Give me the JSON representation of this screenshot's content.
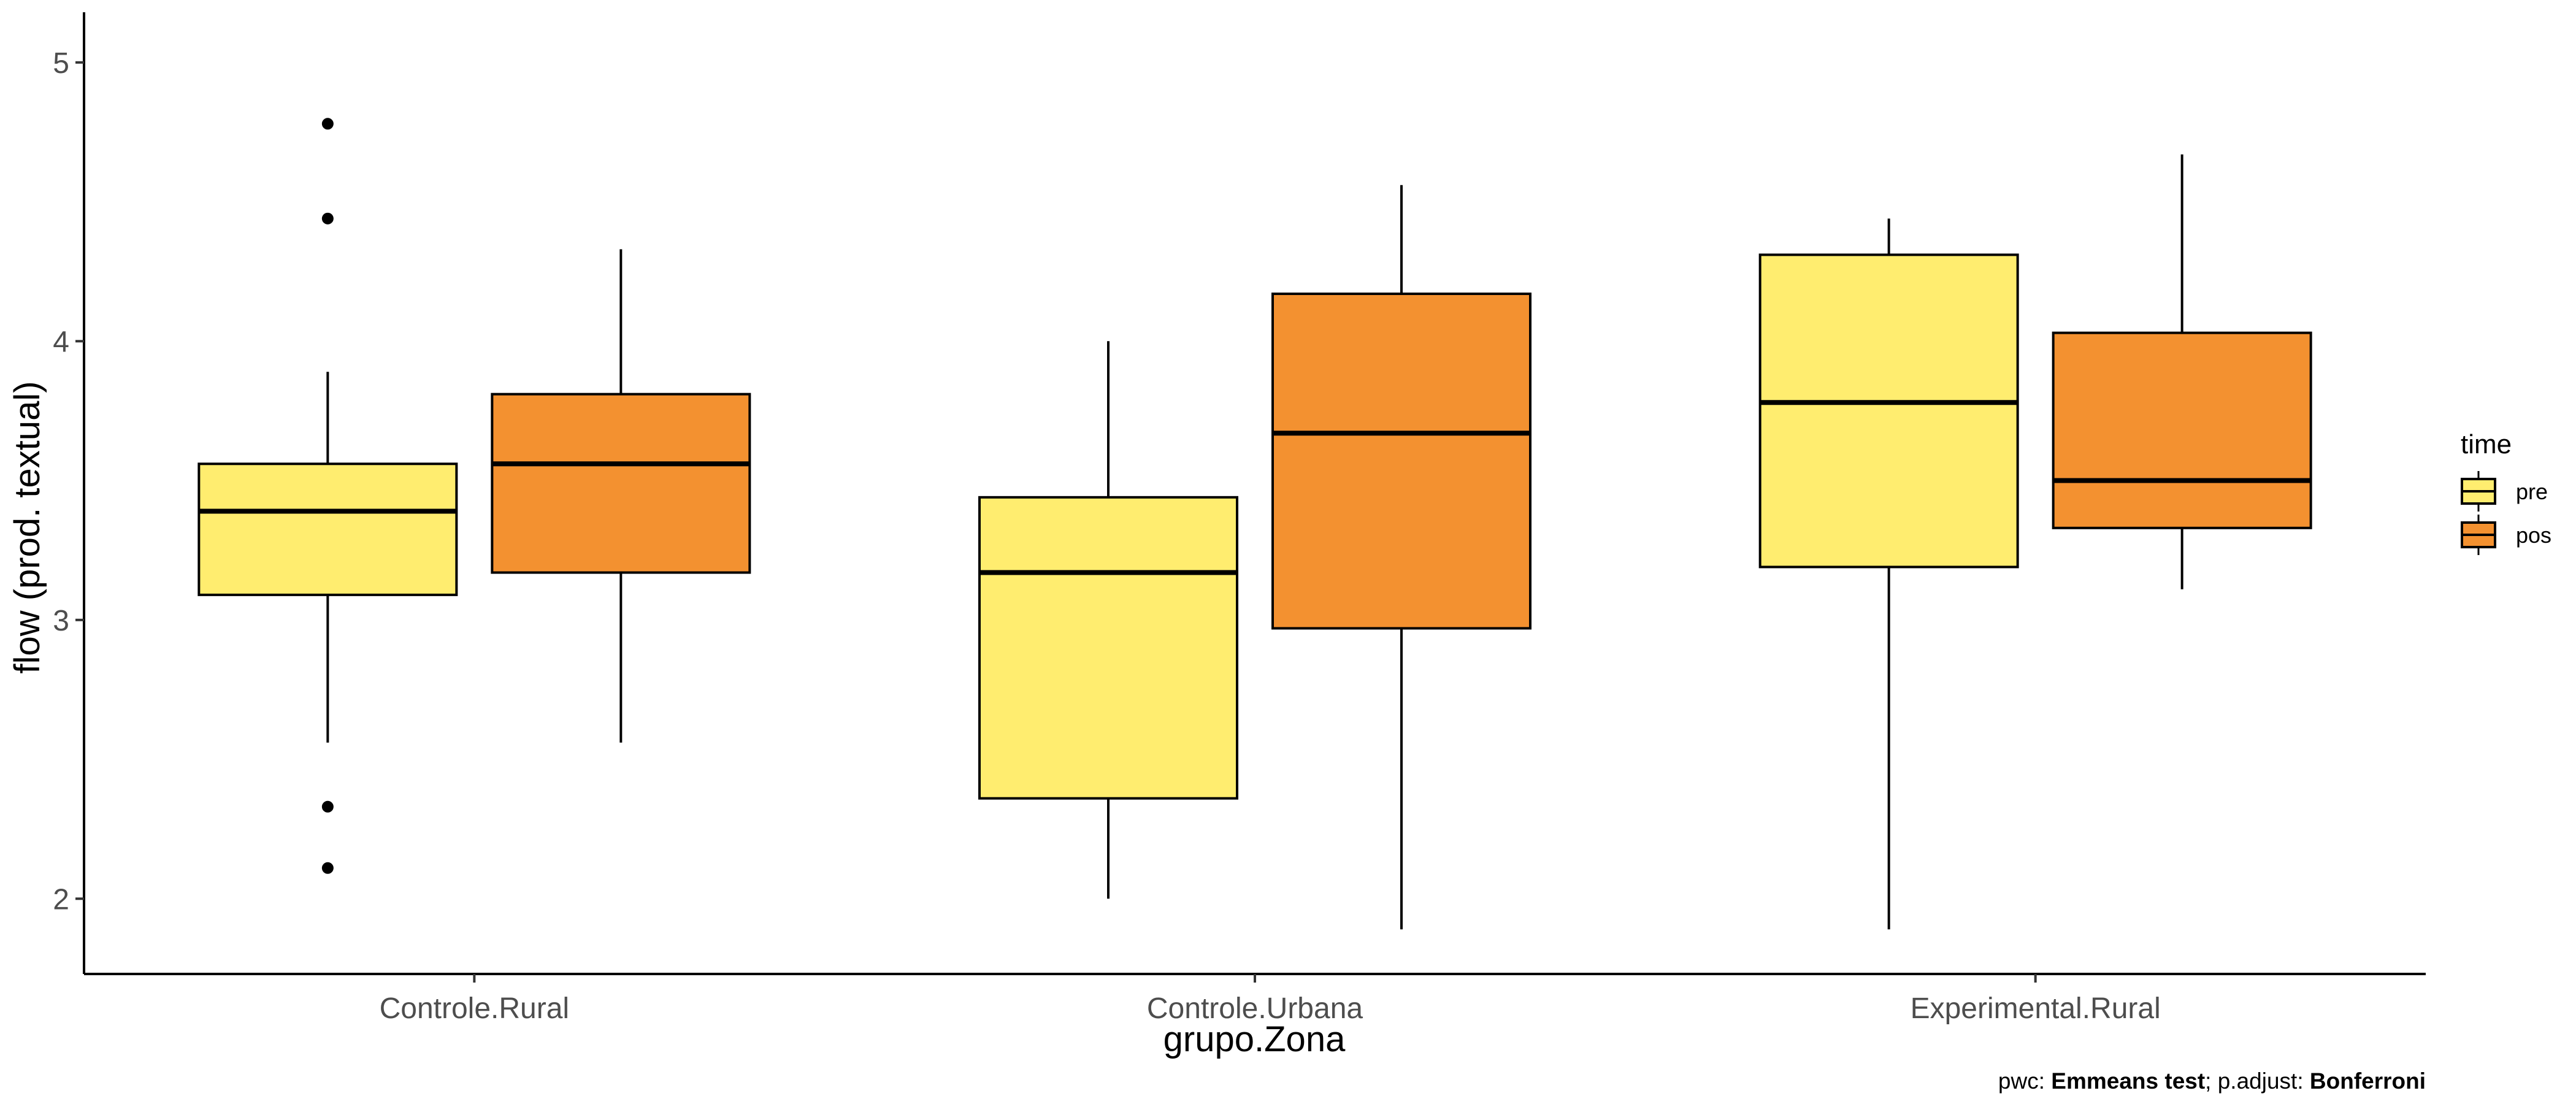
{
  "chart_data": {
    "type": "boxplot",
    "xlabel": "grupo.Zona",
    "ylabel": "flow (prod. textual)",
    "categories": [
      "Controle.Rural",
      "Controle.Urbana",
      "Experimental.Rural"
    ],
    "ylim": [
      1.73,
      5.18
    ],
    "yticks": [
      2,
      3,
      4,
      5
    ],
    "grid": false,
    "legend": {
      "title": "time",
      "placement": "right",
      "entries": [
        {
          "key": "pre",
          "label": "pre",
          "color": "#FFED6F"
        },
        {
          "key": "pos",
          "label": "pos",
          "color": "#F39130"
        }
      ]
    },
    "series": [
      {
        "key": "pre",
        "color": "#FFED6F",
        "boxes": [
          {
            "category": "Controle.Rural",
            "lower_whisker": 2.56,
            "q1": 3.09,
            "median": 3.39,
            "q3": 3.56,
            "upper_whisker": 3.89,
            "outliers": [
              4.78,
              4.44,
              2.33,
              2.11
            ]
          },
          {
            "category": "Controle.Urbana",
            "lower_whisker": 2.0,
            "q1": 2.36,
            "median": 3.17,
            "q3": 3.44,
            "upper_whisker": 4.0,
            "outliers": []
          },
          {
            "category": "Experimental.Rural",
            "lower_whisker": 1.89,
            "q1": 3.19,
            "median": 3.78,
            "q3": 4.31,
            "upper_whisker": 4.44,
            "outliers": []
          }
        ]
      },
      {
        "key": "pos",
        "color": "#F39130",
        "boxes": [
          {
            "category": "Controle.Rural",
            "lower_whisker": 2.56,
            "q1": 3.17,
            "median": 3.56,
            "q3": 3.81,
            "upper_whisker": 4.33,
            "outliers": []
          },
          {
            "category": "Controle.Urbana",
            "lower_whisker": 1.89,
            "q1": 2.97,
            "median": 3.67,
            "q3": 4.17,
            "upper_whisker": 4.56,
            "outliers": []
          },
          {
            "category": "Experimental.Rural",
            "lower_whisker": 3.11,
            "q1": 3.33,
            "median": 3.5,
            "q3": 4.03,
            "upper_whisker": 4.67,
            "outliers": []
          }
        ]
      }
    ],
    "caption": {
      "parts": [
        {
          "text": "pwc: ",
          "bold": false
        },
        {
          "text": "Emmeans test",
          "bold": true
        },
        {
          "text": "; p.adjust: ",
          "bold": false
        },
        {
          "text": "Bonferroni",
          "bold": true
        }
      ]
    }
  }
}
